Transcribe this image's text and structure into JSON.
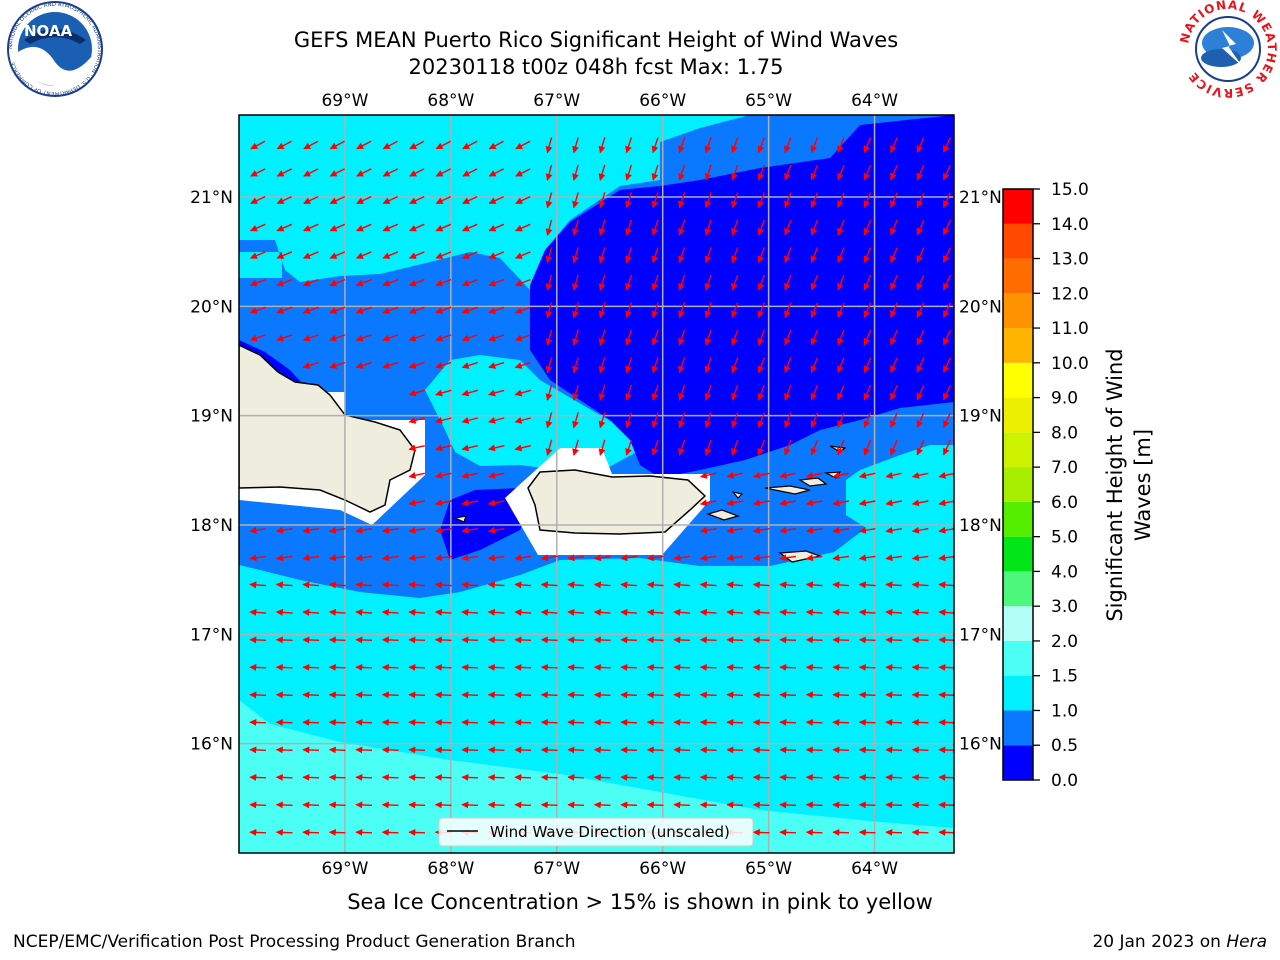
{
  "title": {
    "line1": "GEFS MEAN Puerto Rico Significant Height of Wind Waves",
    "line2": "20230118 t00z 048h fcst   Max: 1.75"
  },
  "logos": {
    "noaa_text": "NOAA",
    "noaa_ring_text": "NATIONAL OCEANIC AND ATMOSPHERIC ADMINISTRATION · U.S. DEPARTMENT OF COMMERCE",
    "nws_ring_text": "NATIONAL WEATHER SERVICE"
  },
  "map": {
    "lon_min": -70.0,
    "lon_max": -63.25,
    "lat_min": 15.0,
    "lat_max": 21.75,
    "lon_ticks": [
      {
        "value": -69,
        "label": "69°W"
      },
      {
        "value": -68,
        "label": "68°W"
      },
      {
        "value": -67,
        "label": "67°W"
      },
      {
        "value": -66,
        "label": "66°W"
      },
      {
        "value": -65,
        "label": "65°W"
      },
      {
        "value": -64,
        "label": "64°W"
      }
    ],
    "lat_ticks": [
      {
        "value": 21,
        "label": "21°N"
      },
      {
        "value": 20,
        "label": "20°N"
      },
      {
        "value": 19,
        "label": "19°N"
      },
      {
        "value": 18,
        "label": "18°N"
      },
      {
        "value": 17,
        "label": "17°N"
      },
      {
        "value": 16,
        "label": "16°N"
      }
    ],
    "legend_label": "Wind Wave Direction (unscaled)"
  },
  "colorbar": {
    "label_line1": "Significant Height of Wind",
    "label_line2": "Waves [m]",
    "levels": [
      {
        "value": "0.0",
        "color": "#0000ff"
      },
      {
        "value": "0.5",
        "color": "#0a78ff"
      },
      {
        "value": "1.0",
        "color": "#00f0ff"
      },
      {
        "value": "1.5",
        "color": "#4bfff5"
      },
      {
        "value": "2.0",
        "color": "#b2fff7"
      },
      {
        "value": "3.0",
        "color": "#4cf77c"
      },
      {
        "value": "4.0",
        "color": "#00e617"
      },
      {
        "value": "5.0",
        "color": "#55ee00"
      },
      {
        "value": "6.0",
        "color": "#a8ee00"
      },
      {
        "value": "7.0",
        "color": "#ccf200"
      },
      {
        "value": "8.0",
        "color": "#ecf000"
      },
      {
        "value": "9.0",
        "color": "#ffff00"
      },
      {
        "value": "10.0",
        "color": "#ffb400"
      },
      {
        "value": "11.0",
        "color": "#ff9400"
      },
      {
        "value": "12.0",
        "color": "#ff6c00"
      },
      {
        "value": "13.0",
        "color": "#ff4a00"
      },
      {
        "value": "14.0",
        "color": "#ff2000"
      },
      {
        "value": "15.0",
        "color": ""
      }
    ]
  },
  "note": "Sea Ice Concentration > 15% is shown in pink to yellow",
  "footer": {
    "left": "NCEP/EMC/Verification Post Processing Product Generation Branch",
    "right_prefix": "20 Jan 2023 on",
    "right_host": "Hera"
  }
}
